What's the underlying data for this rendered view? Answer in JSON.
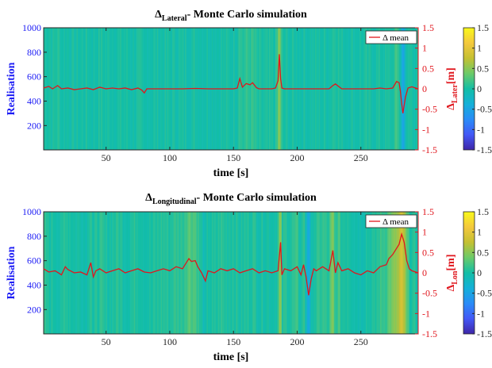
{
  "chart_data": [
    {
      "type": "heatmap",
      "title": {
        "symbol": "Δ",
        "subscript": "Lateral",
        "suffix": "- Monte Carlo simulation"
      },
      "xlabel": "time [s]",
      "ylabel_left": "Realisation",
      "ylabel_right": {
        "symbol": "Δ",
        "subscript": "Later",
        "suffix": "[m]"
      },
      "xlim": [
        1,
        295
      ],
      "ylim_left": [
        1,
        1000
      ],
      "ylim_right": [
        -1.5,
        1.5
      ],
      "xticks": [
        50,
        100,
        150,
        200,
        250
      ],
      "yticks_left": [
        200,
        400,
        600,
        800,
        1000
      ],
      "yticks_right": [
        -1.5,
        -1,
        -0.5,
        0,
        0.5,
        1,
        1.5
      ],
      "colorbar": {
        "colormap": "parula",
        "range": [
          -1.5,
          1.5
        ],
        "ticks": [
          -1.5,
          -1,
          -0.5,
          0,
          0.5,
          1,
          1.5
        ]
      },
      "legend": {
        "label": "Δ mean",
        "location": "top-right"
      },
      "series": [
        {
          "color": "#e0161d",
          "x": [
            1,
            5,
            8,
            12,
            15,
            20,
            25,
            30,
            35,
            40,
            45,
            50,
            55,
            60,
            65,
            70,
            75,
            78,
            80,
            82,
            85,
            90,
            100,
            110,
            120,
            130,
            140,
            150,
            153,
            155,
            157,
            160,
            163,
            165,
            168,
            170,
            175,
            180,
            183,
            185,
            186,
            187,
            188,
            190,
            195,
            200,
            210,
            220,
            225,
            228,
            230,
            235,
            240,
            250,
            260,
            265,
            270,
            275,
            278,
            280,
            281,
            282,
            283,
            285,
            287,
            290,
            295
          ],
          "y": [
            0.02,
            0.06,
            0.0,
            0.08,
            0.0,
            0.02,
            -0.02,
            0.0,
            0.02,
            -0.02,
            0.04,
            0.0,
            0.02,
            0.0,
            0.02,
            -0.02,
            0.02,
            -0.03,
            -0.1,
            0.0,
            0.0,
            0.0,
            0.0,
            0.0,
            0.01,
            0.0,
            0.0,
            0.0,
            0.02,
            0.25,
            0.04,
            0.13,
            0.1,
            0.15,
            0.03,
            0.0,
            0.0,
            0.0,
            0.02,
            0.2,
            0.85,
            0.25,
            0.02,
            0.0,
            0.0,
            0.0,
            0.0,
            0.0,
            0.0,
            0.08,
            0.12,
            0.0,
            0.0,
            0.0,
            0.0,
            0.02,
            0.0,
            0.02,
            0.18,
            0.15,
            -0.05,
            -0.35,
            -0.6,
            -0.2,
            0.02,
            0.05,
            0.0
          ]
        }
      ]
    },
    {
      "type": "heatmap",
      "title": {
        "symbol": "Δ",
        "subscript": "Longitudinal",
        "suffix": "- Monte Carlo simulation"
      },
      "xlabel": "time [s]",
      "ylabel_left": "Realisation",
      "ylabel_right": {
        "symbol": "Δ",
        "subscript": "Lon",
        "suffix": "[m]"
      },
      "xlim": [
        1,
        295
      ],
      "ylim_left": [
        1,
        1000
      ],
      "ylim_right": [
        -1.5,
        1.5
      ],
      "xticks": [
        50,
        100,
        150,
        200,
        250
      ],
      "yticks_left": [
        200,
        400,
        600,
        800,
        1000
      ],
      "yticks_right": [
        -1.5,
        -1,
        -0.5,
        0,
        0.5,
        1,
        1.5
      ],
      "colorbar": {
        "colormap": "parula",
        "range": [
          -1.5,
          1.5
        ],
        "ticks": [
          -1.5,
          -1,
          -0.5,
          0,
          0.5,
          1,
          1.5
        ]
      },
      "legend": {
        "label": "Δ mean",
        "location": "top-right"
      },
      "series": [
        {
          "color": "#e0161d",
          "x": [
            1,
            5,
            10,
            15,
            18,
            20,
            25,
            30,
            35,
            38,
            40,
            42,
            45,
            50,
            55,
            60,
            65,
            70,
            75,
            80,
            85,
            90,
            95,
            100,
            105,
            110,
            113,
            115,
            117,
            120,
            122,
            125,
            128,
            130,
            135,
            140,
            145,
            150,
            155,
            160,
            165,
            170,
            175,
            180,
            185,
            187,
            188,
            190,
            195,
            200,
            203,
            205,
            207,
            209,
            211,
            213,
            215,
            220,
            225,
            228,
            230,
            232,
            235,
            240,
            245,
            250,
            255,
            260,
            265,
            270,
            272,
            275,
            278,
            280,
            282,
            284,
            286,
            288,
            290,
            295
          ],
          "y": [
            0.1,
            0.02,
            0.05,
            -0.05,
            0.15,
            0.08,
            0.0,
            0.02,
            -0.05,
            0.25,
            -0.1,
            0.05,
            0.1,
            0.0,
            0.05,
            0.1,
            0.0,
            0.05,
            0.1,
            0.02,
            0.0,
            0.05,
            0.1,
            0.05,
            0.15,
            0.1,
            0.25,
            0.35,
            0.28,
            0.3,
            0.15,
            0.0,
            -0.2,
            0.05,
            0.0,
            0.1,
            0.05,
            0.1,
            0.0,
            0.05,
            0.1,
            0.0,
            0.05,
            0.0,
            0.05,
            0.75,
            -0.05,
            0.1,
            0.05,
            0.15,
            -0.05,
            0.2,
            -0.1,
            -0.55,
            -0.15,
            0.1,
            0.05,
            0.15,
            0.05,
            0.55,
            0.0,
            0.25,
            0.05,
            0.1,
            0.0,
            -0.05,
            0.05,
            0.0,
            0.15,
            0.2,
            0.35,
            0.45,
            0.6,
            0.7,
            0.95,
            0.75,
            0.3,
            0.1,
            0.05,
            0.0
          ]
        }
      ]
    }
  ]
}
